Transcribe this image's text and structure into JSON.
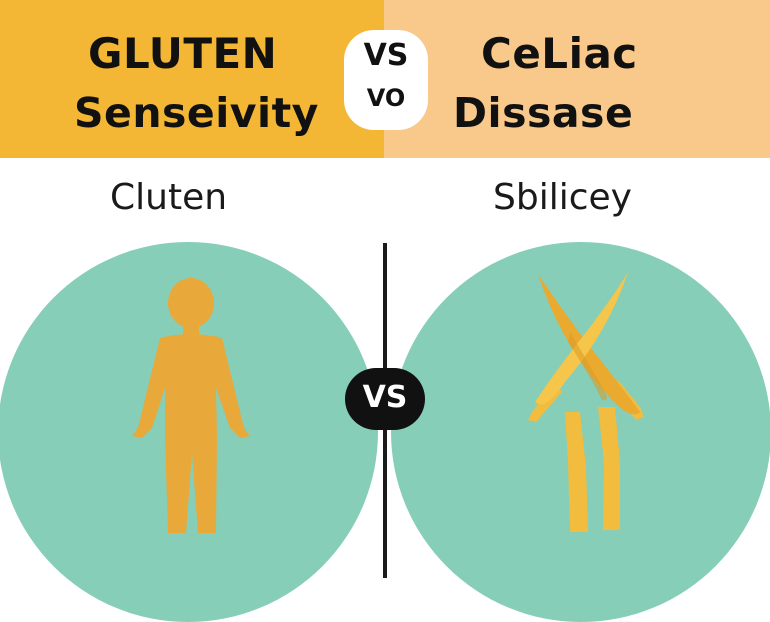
{
  "header": {
    "left_line1": "GLUTEN",
    "left_line2": "Senseivity",
    "right_line1": "CeLiac",
    "right_line2": "Dissase",
    "vs_top": "VS",
    "vs_bottom": "VO"
  },
  "subtitles": {
    "left": "Cluten",
    "right": "Sbilicey"
  },
  "center_badge": "VS",
  "icons": {
    "left": "person-icon",
    "right": "ribbon-figure-icon"
  },
  "colors": {
    "left_banner": "#f4b735",
    "right_banner": "#f8c98a",
    "circle": "#86ceb8",
    "figure": "#e8a93a",
    "ribbon": "#f2bc3e"
  }
}
